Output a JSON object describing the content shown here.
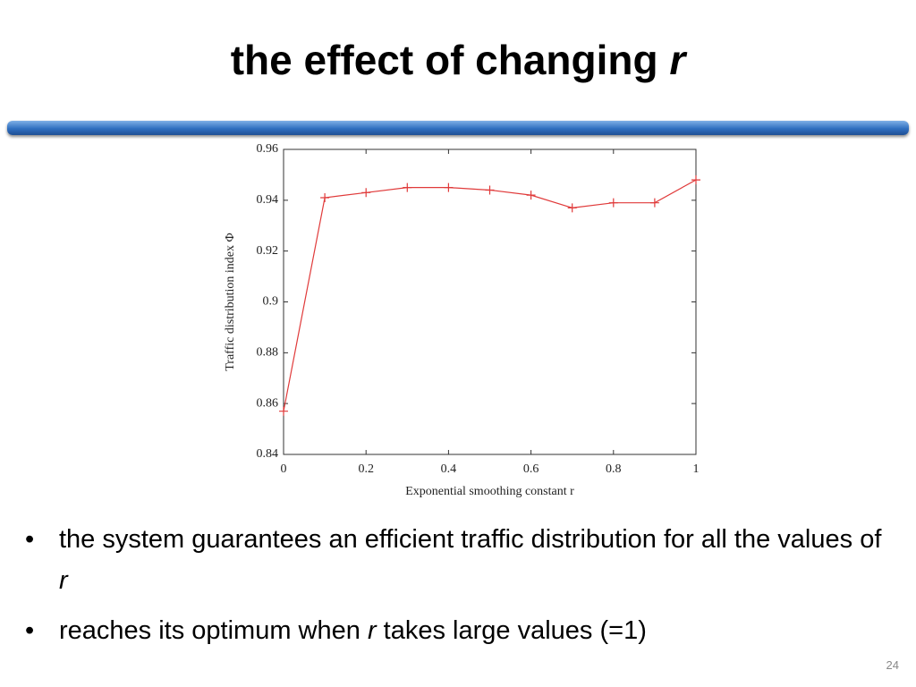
{
  "slide": {
    "title": [
      "the effect of changing",
      "r"
    ],
    "bullets": [
      [
        "the system guarantees an efficient traffic distribution for all the values of",
        "r"
      ],
      [
        "reaches its optimum when",
        "r",
        "takes large values (=1)"
      ]
    ],
    "page_number": "24"
  },
  "chart_data": {
    "type": "line",
    "x_label": "Exponential smoothing constant r",
    "y_label": "Traffic distribution index Φ",
    "x": [
      0,
      0.1,
      0.2,
      0.3,
      0.4,
      0.5,
      0.6,
      0.7,
      0.8,
      0.9,
      1
    ],
    "series": [
      {
        "color": "#e03a3a",
        "values": [
          0.857,
          0.941,
          0.943,
          0.945,
          0.945,
          0.944,
          0.942,
          0.937,
          0.939,
          0.939,
          0.948
        ]
      }
    ],
    "xlim": [
      0,
      1
    ],
    "xticks": [
      0,
      0.2,
      0.4,
      0.6,
      0.8,
      1
    ],
    "ylim": [
      0.84,
      0.96
    ],
    "yticks": [
      0.84,
      0.86,
      0.88,
      0.9,
      0.92,
      0.94,
      0.96
    ],
    "grid": false
  }
}
